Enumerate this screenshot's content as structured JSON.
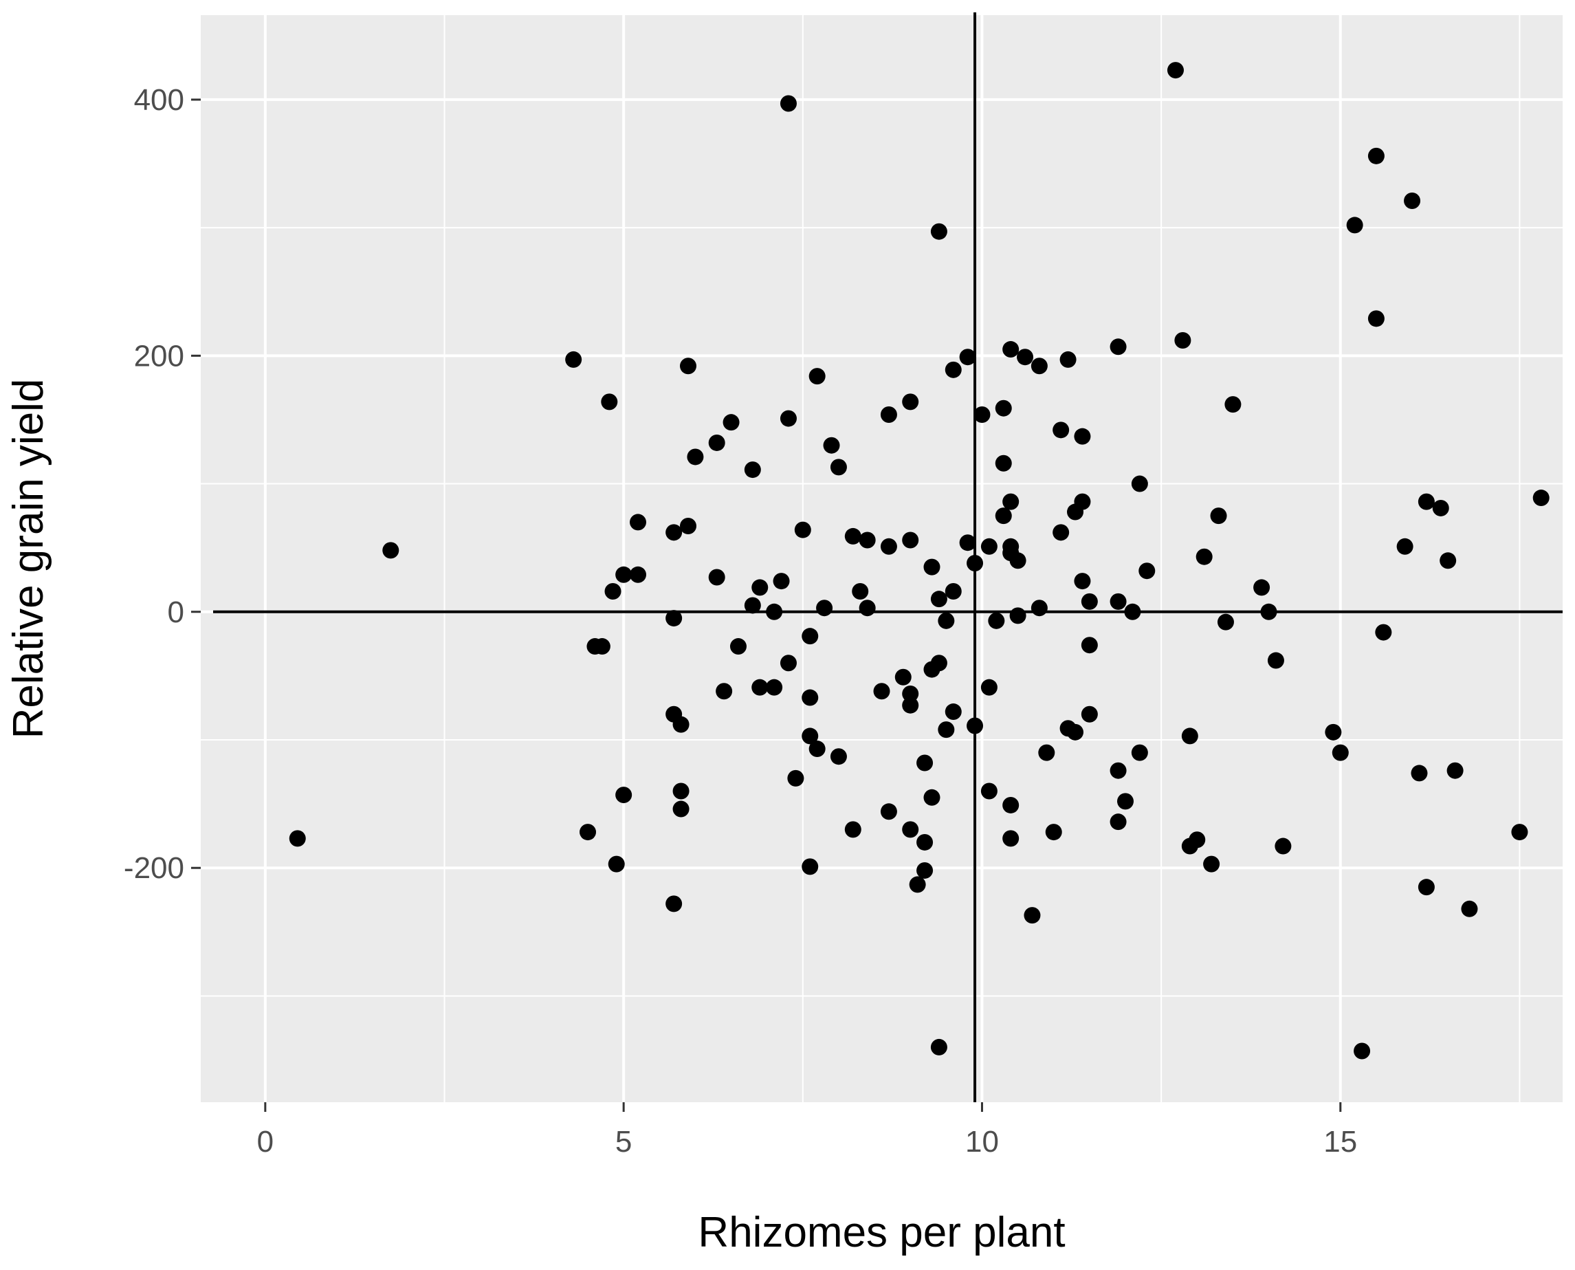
{
  "chart_data": {
    "type": "scatter",
    "title": "",
    "xlabel": "Rhizomes per plant",
    "ylabel": "Relative grain yield",
    "xlim": [
      -0.9,
      18.1
    ],
    "ylim": [
      -383,
      466
    ],
    "x_ticks": [
      0,
      5,
      10,
      15
    ],
    "x_tick_labels": [
      "0",
      "5",
      "10",
      "15"
    ],
    "y_ticks": [
      -200,
      0,
      200,
      400
    ],
    "y_tick_labels": [
      "-200",
      "0",
      "200",
      "400"
    ],
    "x_minor_grid": [
      2.5,
      7.5,
      12.5,
      17.5
    ],
    "y_minor_grid": [
      -300,
      -100,
      100,
      300
    ],
    "grid": true,
    "panel_background": "#ebebeb",
    "grid_color": "#ffffff",
    "point_color": "#000000",
    "reference_lines": {
      "vertical_x": 9.9,
      "horizontal_y": 0
    },
    "points": [
      [
        0.45,
        -177
      ],
      [
        1.75,
        48
      ],
      [
        4.3,
        197
      ],
      [
        4.5,
        -172
      ],
      [
        4.6,
        -27
      ],
      [
        4.7,
        -27
      ],
      [
        4.8,
        164
      ],
      [
        4.85,
        16
      ],
      [
        4.9,
        -197
      ],
      [
        5.0,
        29
      ],
      [
        5.0,
        -143
      ],
      [
        5.2,
        70
      ],
      [
        5.2,
        29
      ],
      [
        5.7,
        62
      ],
      [
        5.7,
        -5
      ],
      [
        5.7,
        -80
      ],
      [
        5.7,
        -228
      ],
      [
        5.8,
        -88
      ],
      [
        5.8,
        -140
      ],
      [
        5.8,
        -154
      ],
      [
        5.9,
        67
      ],
      [
        5.9,
        192
      ],
      [
        6.0,
        121
      ],
      [
        6.3,
        132
      ],
      [
        6.3,
        27
      ],
      [
        6.4,
        -62
      ],
      [
        6.5,
        148
      ],
      [
        6.6,
        -27
      ],
      [
        6.8,
        111
      ],
      [
        6.8,
        5
      ],
      [
        6.9,
        19
      ],
      [
        6.9,
        -59
      ],
      [
        7.1,
        -59
      ],
      [
        7.1,
        0
      ],
      [
        7.2,
        24
      ],
      [
        7.3,
        151
      ],
      [
        7.3,
        -40
      ],
      [
        7.3,
        397
      ],
      [
        7.4,
        -130
      ],
      [
        7.5,
        64
      ],
      [
        7.6,
        -67
      ],
      [
        7.6,
        -19
      ],
      [
        7.6,
        -97
      ],
      [
        7.6,
        -199
      ],
      [
        7.7,
        -107
      ],
      [
        7.7,
        184
      ],
      [
        7.8,
        3
      ],
      [
        7.9,
        130
      ],
      [
        8.0,
        113
      ],
      [
        8.0,
        -113
      ],
      [
        8.2,
        59
      ],
      [
        8.2,
        -170
      ],
      [
        8.3,
        16
      ],
      [
        8.4,
        56
      ],
      [
        8.4,
        3
      ],
      [
        8.6,
        -62
      ],
      [
        8.7,
        154
      ],
      [
        8.7,
        51
      ],
      [
        8.7,
        -156
      ],
      [
        8.9,
        -51
      ],
      [
        9.0,
        56
      ],
      [
        9.0,
        164
      ],
      [
        9.0,
        -64
      ],
      [
        9.0,
        -73
      ],
      [
        9.0,
        -170
      ],
      [
        9.1,
        -213
      ],
      [
        9.2,
        -118
      ],
      [
        9.2,
        -180
      ],
      [
        9.2,
        -202
      ],
      [
        9.3,
        35
      ],
      [
        9.3,
        -145
      ],
      [
        9.3,
        -45
      ],
      [
        9.4,
        -40
      ],
      [
        9.4,
        10
      ],
      [
        9.4,
        297
      ],
      [
        9.4,
        -340
      ],
      [
        9.5,
        -7
      ],
      [
        9.5,
        -92
      ],
      [
        9.6,
        16
      ],
      [
        9.6,
        189
      ],
      [
        9.6,
        -78
      ],
      [
        9.8,
        199
      ],
      [
        9.8,
        54
      ],
      [
        9.9,
        38
      ],
      [
        9.9,
        -89
      ],
      [
        10.0,
        154
      ],
      [
        10.1,
        -59
      ],
      [
        10.1,
        -140
      ],
      [
        10.1,
        51
      ],
      [
        10.2,
        -7
      ],
      [
        10.3,
        159
      ],
      [
        10.3,
        116
      ],
      [
        10.3,
        75
      ],
      [
        10.4,
        86
      ],
      [
        10.4,
        205
      ],
      [
        10.4,
        51
      ],
      [
        10.4,
        46
      ],
      [
        10.4,
        -151
      ],
      [
        10.4,
        -177
      ],
      [
        10.5,
        40
      ],
      [
        10.5,
        -3
      ],
      [
        10.6,
        199
      ],
      [
        10.7,
        -237
      ],
      [
        10.8,
        192
      ],
      [
        10.8,
        3
      ],
      [
        10.9,
        -110
      ],
      [
        11.0,
        -172
      ],
      [
        11.1,
        142
      ],
      [
        11.1,
        62
      ],
      [
        11.2,
        197
      ],
      [
        11.2,
        -91
      ],
      [
        11.3,
        78
      ],
      [
        11.3,
        -94
      ],
      [
        11.4,
        86
      ],
      [
        11.4,
        137
      ],
      [
        11.4,
        24
      ],
      [
        11.5,
        8
      ],
      [
        11.5,
        -26
      ],
      [
        11.5,
        -80
      ],
      [
        11.9,
        207
      ],
      [
        11.9,
        8
      ],
      [
        11.9,
        -124
      ],
      [
        11.9,
        -164
      ],
      [
        12.0,
        -148
      ],
      [
        12.1,
        0
      ],
      [
        12.2,
        100
      ],
      [
        12.2,
        -110
      ],
      [
        12.3,
        32
      ],
      [
        12.8,
        212
      ],
      [
        12.9,
        -97
      ],
      [
        12.9,
        -183
      ],
      [
        13.0,
        -178
      ],
      [
        13.1,
        43
      ],
      [
        13.2,
        -197
      ],
      [
        13.3,
        75
      ],
      [
        13.4,
        -8
      ],
      [
        13.5,
        162
      ],
      [
        13.9,
        19
      ],
      [
        14.0,
        0
      ],
      [
        14.1,
        -38
      ],
      [
        14.2,
        -183
      ],
      [
        14.9,
        -94
      ],
      [
        15.0,
        -110
      ],
      [
        15.2,
        302
      ],
      [
        15.3,
        -343
      ],
      [
        15.5,
        356
      ],
      [
        15.5,
        229
      ],
      [
        15.6,
        -16
      ],
      [
        15.9,
        51
      ],
      [
        16.0,
        321
      ],
      [
        16.1,
        -126
      ],
      [
        16.2,
        -215
      ],
      [
        16.2,
        86
      ],
      [
        16.4,
        81
      ],
      [
        16.5,
        40
      ],
      [
        16.6,
        -124
      ],
      [
        16.8,
        -232
      ],
      [
        17.5,
        -172
      ],
      [
        17.8,
        89
      ],
      [
        12.7,
        423
      ]
    ]
  }
}
